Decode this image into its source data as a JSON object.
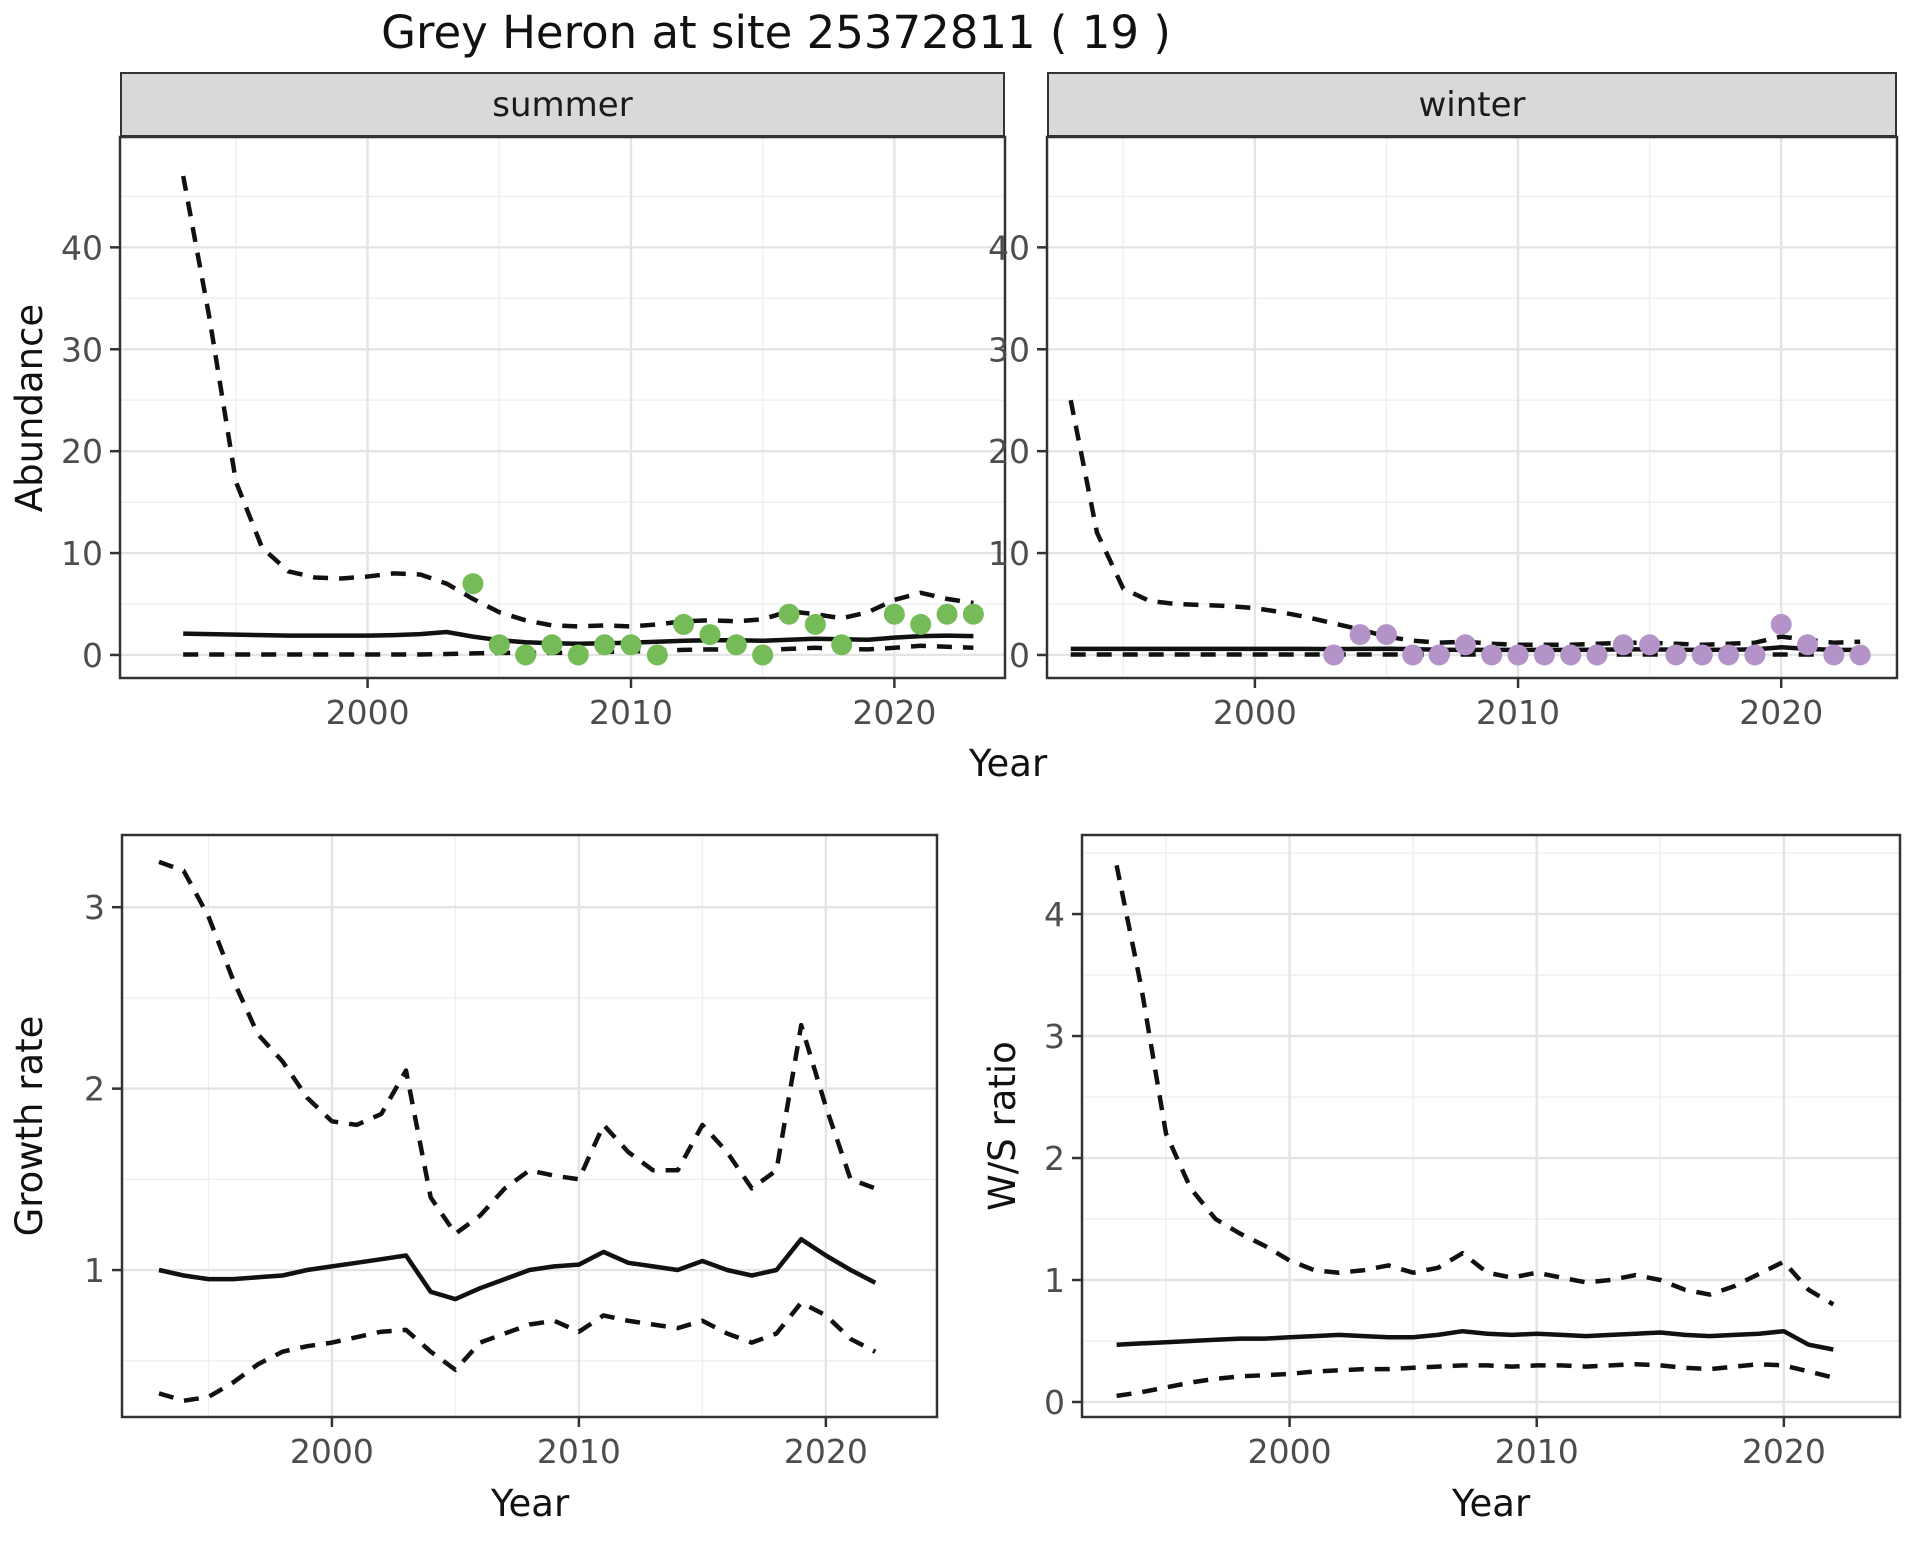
{
  "title": "Grey Heron at site 25372811 ( 19 )",
  "facets": {
    "summer": "summer",
    "winter": "winter"
  },
  "axis_titles": {
    "abundance": "Abundance",
    "growth_rate": "Growth rate",
    "ws_ratio": "W/S ratio",
    "year": "Year"
  },
  "colors": {
    "summer_point": "#75BB58",
    "winter_point": "#B493C8",
    "line": "#111111",
    "strip_bg": "#d9d9d9",
    "panel_border": "#333333",
    "grid_major": "#e4e4e4",
    "grid_minor": "#efefef",
    "tick_label": "#4d4d4d"
  },
  "chart_data": [
    {
      "id": "abundance_summer",
      "type": "line+scatter",
      "facet_label": "summer",
      "xlabel": "Year",
      "ylabel": "Abundance",
      "x_major": [
        2000,
        2010,
        2020
      ],
      "x_minor": [
        1995,
        2005,
        2015
      ],
      "y_major": [
        0,
        10,
        20,
        30,
        40
      ],
      "y_minor": [
        5,
        15,
        25,
        35,
        45
      ],
      "line_years": [
        1993,
        1994,
        1995,
        1996,
        1997,
        1998,
        1999,
        2000,
        2001,
        2002,
        2003,
        2004,
        2005,
        2006,
        2007,
        2008,
        2009,
        2010,
        2011,
        2012,
        2013,
        2014,
        2015,
        2016,
        2017,
        2018,
        2019,
        2020,
        2021,
        2022,
        2023
      ],
      "fit": [
        2.1,
        2.05,
        2.0,
        1.95,
        1.9,
        1.9,
        1.9,
        1.9,
        1.95,
        2.05,
        2.25,
        1.8,
        1.45,
        1.25,
        1.15,
        1.1,
        1.15,
        1.2,
        1.3,
        1.4,
        1.45,
        1.45,
        1.4,
        1.5,
        1.6,
        1.55,
        1.5,
        1.7,
        1.85,
        1.9,
        1.85
      ],
      "ci_upper": [
        47,
        33,
        17,
        10.5,
        8.2,
        7.6,
        7.5,
        7.7,
        8.0,
        7.9,
        7.0,
        5.5,
        4.2,
        3.4,
        2.9,
        2.8,
        2.9,
        2.8,
        3.0,
        3.3,
        3.4,
        3.3,
        3.5,
        4.3,
        4.0,
        3.6,
        4.2,
        5.4,
        6.1,
        5.5,
        5.1
      ],
      "ci_lower": [
        0.05,
        0.05,
        0.05,
        0.05,
        0.05,
        0.05,
        0.05,
        0.05,
        0.05,
        0.05,
        0.1,
        0.15,
        0.2,
        0.2,
        0.2,
        0.25,
        0.3,
        0.35,
        0.4,
        0.5,
        0.55,
        0.5,
        0.5,
        0.6,
        0.7,
        0.6,
        0.55,
        0.7,
        0.9,
        0.8,
        0.7
      ],
      "points": [
        [
          2004,
          7
        ],
        [
          2005,
          1
        ],
        [
          2006,
          0
        ],
        [
          2007,
          1
        ],
        [
          2008,
          0
        ],
        [
          2009,
          1
        ],
        [
          2010,
          1
        ],
        [
          2011,
          0
        ],
        [
          2012,
          3
        ],
        [
          2013,
          2
        ],
        [
          2014,
          1
        ],
        [
          2015,
          0
        ],
        [
          2016,
          4
        ],
        [
          2017,
          3
        ],
        [
          2018,
          1
        ],
        [
          2020,
          4
        ],
        [
          2021,
          3
        ],
        [
          2022,
          4
        ],
        [
          2023,
          4
        ]
      ],
      "point_color": "#75BB58"
    },
    {
      "id": "abundance_winter",
      "type": "line+scatter",
      "facet_label": "winter",
      "xlabel": "Year",
      "ylabel": "Abundance",
      "x_major": [
        2000,
        2010,
        2020
      ],
      "x_minor": [
        1995,
        2005,
        2015
      ],
      "y_major": [
        0,
        10,
        20,
        30,
        40
      ],
      "y_minor": [
        5,
        15,
        25,
        35,
        45
      ],
      "line_years": [
        1993,
        1994,
        1995,
        1996,
        1997,
        1998,
        1999,
        2000,
        2001,
        2002,
        2003,
        2004,
        2005,
        2006,
        2007,
        2008,
        2009,
        2010,
        2011,
        2012,
        2013,
        2014,
        2015,
        2016,
        2017,
        2018,
        2019,
        2020,
        2021,
        2022,
        2023
      ],
      "fit": [
        0.6,
        0.6,
        0.6,
        0.6,
        0.6,
        0.6,
        0.6,
        0.6,
        0.6,
        0.6,
        0.58,
        0.6,
        0.62,
        0.58,
        0.52,
        0.5,
        0.5,
        0.5,
        0.5,
        0.5,
        0.52,
        0.55,
        0.55,
        0.52,
        0.5,
        0.52,
        0.55,
        0.75,
        0.6,
        0.5,
        0.5
      ],
      "ci_upper": [
        25,
        12,
        6.5,
        5.3,
        5.0,
        4.9,
        4.8,
        4.6,
        4.2,
        3.7,
        3.1,
        2.5,
        1.8,
        1.4,
        1.2,
        1.3,
        1.1,
        1.0,
        1.0,
        1.0,
        1.1,
        1.2,
        1.2,
        1.1,
        1.0,
        1.1,
        1.2,
        1.8,
        1.5,
        1.2,
        1.3
      ],
      "ci_lower": [
        0.05,
        0.05,
        0.05,
        0.05,
        0.05,
        0.05,
        0.05,
        0.05,
        0.05,
        0.05,
        0.05,
        0.05,
        0.05,
        0.05,
        0.05,
        0.05,
        0.05,
        0.05,
        0.05,
        0.05,
        0.05,
        0.05,
        0.05,
        0.05,
        0.05,
        0.05,
        0.05,
        0.05,
        0.05,
        0.05,
        0.05
      ],
      "points": [
        [
          2003,
          0
        ],
        [
          2004,
          2
        ],
        [
          2005,
          2
        ],
        [
          2006,
          0
        ],
        [
          2007,
          0
        ],
        [
          2008,
          1
        ],
        [
          2009,
          0
        ],
        [
          2010,
          0
        ],
        [
          2011,
          0
        ],
        [
          2012,
          0
        ],
        [
          2013,
          0
        ],
        [
          2014,
          1
        ],
        [
          2015,
          1
        ],
        [
          2016,
          0
        ],
        [
          2017,
          0
        ],
        [
          2018,
          0
        ],
        [
          2019,
          0
        ],
        [
          2020,
          3
        ],
        [
          2021,
          1
        ],
        [
          2022,
          0
        ],
        [
          2023,
          0
        ]
      ],
      "point_color": "#B493C8"
    },
    {
      "id": "growth_rate",
      "type": "line",
      "xlabel": "Year",
      "ylabel": "Growth rate",
      "x_major": [
        2000,
        2010,
        2020
      ],
      "x_minor": [
        1995,
        2005,
        2015
      ],
      "y_major": [
        1,
        2,
        3
      ],
      "y_minor": [
        0.5,
        1.5,
        2.5
      ],
      "line_years": [
        1993,
        1994,
        1995,
        1996,
        1997,
        1998,
        1999,
        2000,
        2001,
        2002,
        2003,
        2004,
        2005,
        2006,
        2007,
        2008,
        2009,
        2010,
        2011,
        2012,
        2013,
        2014,
        2015,
        2016,
        2017,
        2018,
        2019,
        2020,
        2021,
        2022
      ],
      "fit": [
        1.0,
        0.97,
        0.95,
        0.95,
        0.96,
        0.97,
        1.0,
        1.02,
        1.04,
        1.06,
        1.08,
        0.88,
        0.84,
        0.9,
        0.95,
        1.0,
        1.02,
        1.03,
        1.1,
        1.04,
        1.02,
        1.0,
        1.05,
        1.0,
        0.97,
        1.0,
        1.17,
        1.08,
        1.0,
        0.93
      ],
      "ci_upper": [
        3.25,
        3.2,
        2.95,
        2.6,
        2.3,
        2.15,
        1.95,
        1.82,
        1.8,
        1.86,
        2.1,
        1.4,
        1.2,
        1.3,
        1.45,
        1.55,
        1.52,
        1.5,
        1.8,
        1.65,
        1.55,
        1.55,
        1.8,
        1.65,
        1.45,
        1.55,
        2.35,
        1.9,
        1.5,
        1.45
      ],
      "ci_lower": [
        0.32,
        0.28,
        0.3,
        0.38,
        0.48,
        0.55,
        0.58,
        0.6,
        0.63,
        0.66,
        0.67,
        0.55,
        0.45,
        0.6,
        0.65,
        0.7,
        0.72,
        0.66,
        0.75,
        0.72,
        0.7,
        0.68,
        0.72,
        0.65,
        0.6,
        0.65,
        0.82,
        0.75,
        0.62,
        0.55
      ],
      "points": [],
      "point_color": null
    },
    {
      "id": "ws_ratio",
      "type": "line",
      "xlabel": "Year",
      "ylabel": "W/S ratio",
      "x_major": [
        2000,
        2010,
        2020
      ],
      "x_minor": [
        1995,
        2005,
        2015
      ],
      "y_major": [
        0,
        1,
        2,
        3,
        4
      ],
      "y_minor": [
        0.5,
        1.5,
        2.5,
        3.5,
        4.5
      ],
      "line_years": [
        1993,
        1994,
        1995,
        1996,
        1997,
        1998,
        1999,
        2000,
        2001,
        2002,
        2003,
        2004,
        2005,
        2006,
        2007,
        2008,
        2009,
        2010,
        2011,
        2012,
        2013,
        2014,
        2015,
        2016,
        2017,
        2018,
        2019,
        2020,
        2021,
        2022
      ],
      "fit": [
        0.47,
        0.48,
        0.49,
        0.5,
        0.51,
        0.52,
        0.52,
        0.53,
        0.54,
        0.55,
        0.54,
        0.53,
        0.53,
        0.55,
        0.58,
        0.56,
        0.55,
        0.56,
        0.55,
        0.54,
        0.55,
        0.56,
        0.57,
        0.55,
        0.54,
        0.55,
        0.56,
        0.58,
        0.47,
        0.43
      ],
      "ci_upper": [
        4.4,
        3.4,
        2.2,
        1.75,
        1.5,
        1.38,
        1.28,
        1.16,
        1.08,
        1.06,
        1.08,
        1.12,
        1.06,
        1.1,
        1.22,
        1.06,
        1.02,
        1.06,
        1.02,
        0.98,
        1.0,
        1.04,
        1.0,
        0.92,
        0.88,
        0.95,
        1.05,
        1.15,
        0.92,
        0.8
      ],
      "ci_lower": [
        0.05,
        0.08,
        0.12,
        0.16,
        0.19,
        0.21,
        0.22,
        0.23,
        0.25,
        0.26,
        0.27,
        0.27,
        0.28,
        0.29,
        0.3,
        0.3,
        0.29,
        0.3,
        0.3,
        0.29,
        0.3,
        0.31,
        0.3,
        0.28,
        0.27,
        0.29,
        0.31,
        0.3,
        0.25,
        0.2
      ],
      "points": [],
      "point_color": null
    }
  ]
}
